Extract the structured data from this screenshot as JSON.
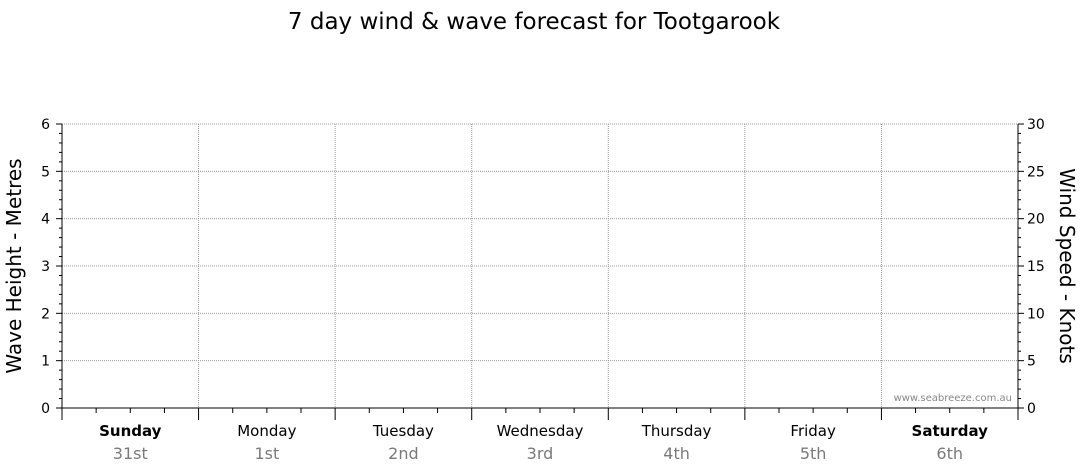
{
  "chart_data": {
    "type": "line",
    "title": "7 day wind & wave forecast for Tootgarook",
    "y_left": {
      "label": "Wave Height - Metres",
      "range": [
        0,
        6
      ],
      "ticks": [
        0,
        1,
        2,
        3,
        4,
        5,
        6
      ]
    },
    "y_right": {
      "label": "Wind Speed - Knots",
      "range": [
        0,
        30
      ],
      "ticks": [
        0,
        5,
        10,
        15,
        20,
        25,
        30
      ]
    },
    "days": [
      {
        "name": "Sunday",
        "date": "31st",
        "weekend": true
      },
      {
        "name": "Monday",
        "date": "1st",
        "weekend": false
      },
      {
        "name": "Tuesday",
        "date": "2nd",
        "weekend": false
      },
      {
        "name": "Wednesday",
        "date": "3rd",
        "weekend": false
      },
      {
        "name": "Thursday",
        "date": "4th",
        "weekend": false
      },
      {
        "name": "Friday",
        "date": "5th",
        "weekend": false
      },
      {
        "name": "Saturday",
        "date": "6th",
        "weekend": true
      }
    ],
    "grid": true,
    "series": []
  },
  "watermark": "www.seabreeze.com.au",
  "colors": {
    "axis": "#000000",
    "grid": "#999999",
    "date_text": "#7a7a7a"
  }
}
